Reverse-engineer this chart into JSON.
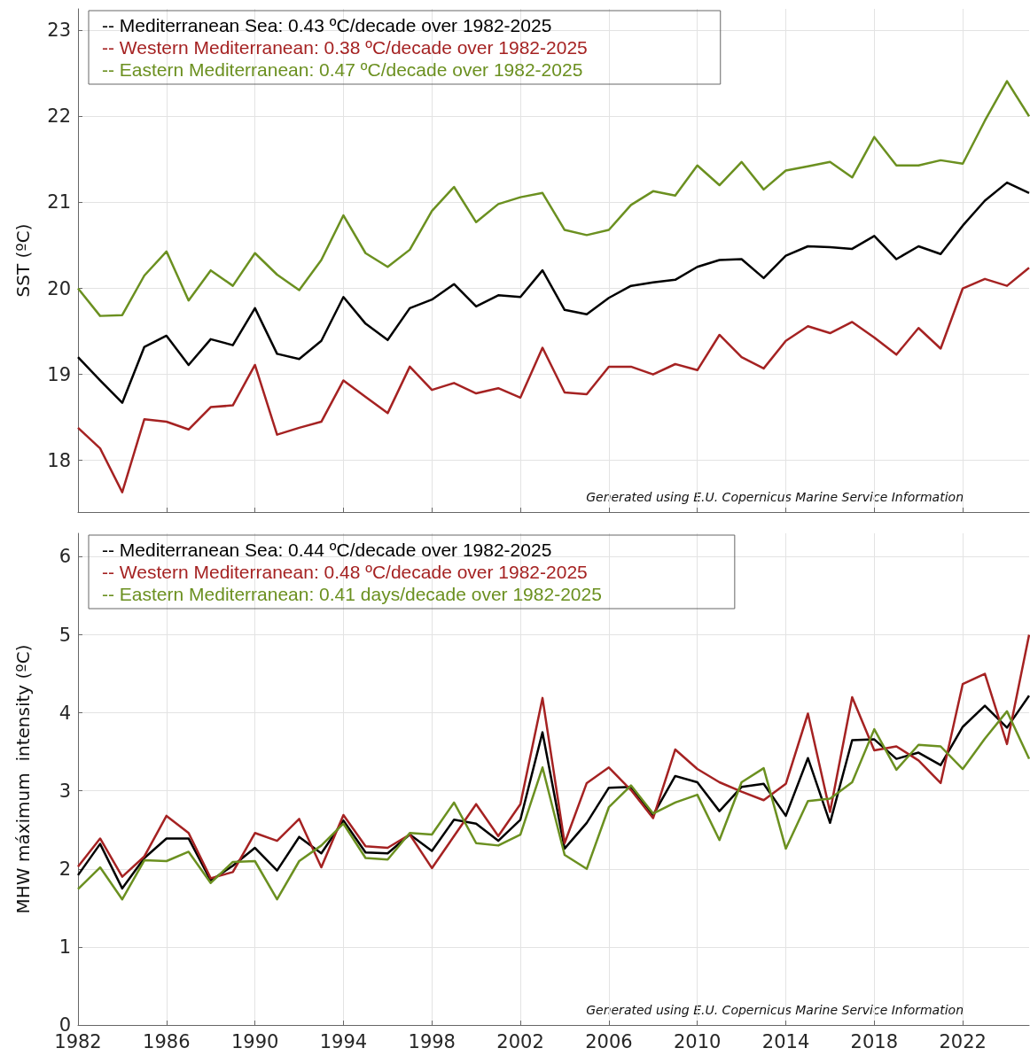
{
  "chart_data": [
    {
      "type": "line",
      "ylabel": "SST (ºC)",
      "x": [
        1982,
        1983,
        1984,
        1985,
        1986,
        1987,
        1988,
        1989,
        1990,
        1991,
        1992,
        1993,
        1994,
        1995,
        1996,
        1997,
        1998,
        1999,
        2000,
        2001,
        2002,
        2003,
        2004,
        2005,
        2006,
        2007,
        2008,
        2009,
        2010,
        2011,
        2012,
        2013,
        2014,
        2015,
        2016,
        2017,
        2018,
        2019,
        2020,
        2021,
        2022,
        2023,
        2024,
        2025
      ],
      "series": [
        {
          "name": "-- Mediterranean Sea: 0.43 ºC/decade over 1982-2025",
          "color": "#000000",
          "values": [
            19.2,
            18.93,
            18.67,
            19.32,
            19.45,
            19.11,
            19.41,
            19.34,
            19.77,
            19.24,
            19.18,
            19.39,
            19.9,
            19.59,
            19.4,
            19.77,
            19.87,
            20.05,
            19.79,
            19.92,
            19.9,
            20.21,
            19.75,
            19.7,
            19.89,
            20.03,
            20.07,
            20.1,
            20.25,
            20.33,
            20.34,
            20.12,
            20.38,
            20.49,
            20.48,
            20.46,
            20.61,
            20.34,
            20.49,
            20.4,
            20.73,
            21.02,
            21.23,
            21.11
          ]
        },
        {
          "name": "-- Western Mediterranean: 0.38 ºC/decade over 1982-2025",
          "color": "#a52222",
          "values": [
            18.38,
            18.14,
            17.63,
            18.48,
            18.45,
            18.36,
            18.62,
            18.64,
            19.11,
            18.3,
            18.38,
            18.45,
            18.93,
            18.74,
            18.55,
            19.09,
            18.82,
            18.9,
            18.78,
            18.84,
            18.73,
            19.31,
            18.79,
            18.77,
            19.09,
            19.09,
            19.0,
            19.12,
            19.05,
            19.46,
            19.2,
            19.07,
            19.39,
            19.56,
            19.48,
            19.61,
            19.43,
            19.23,
            19.54,
            19.3,
            20.0,
            20.11,
            20.03,
            20.24
          ]
        },
        {
          "name": "-- Eastern Mediterranean: 0.47 ºC/decade over 1982-2025",
          "color": "#6b9020",
          "values": [
            20.0,
            19.68,
            19.69,
            20.15,
            20.43,
            19.86,
            20.21,
            20.03,
            20.41,
            20.16,
            19.98,
            20.33,
            20.85,
            20.41,
            20.25,
            20.45,
            20.9,
            21.18,
            20.77,
            20.98,
            21.06,
            21.11,
            20.68,
            20.62,
            20.68,
            20.97,
            21.13,
            21.08,
            21.43,
            21.2,
            21.47,
            21.15,
            21.37,
            21.42,
            21.47,
            21.29,
            21.76,
            21.43,
            21.43,
            21.49,
            21.45,
            21.95,
            22.41,
            22.0
          ]
        }
      ],
      "xlim": [
        1982,
        2025
      ],
      "xticks": [
        1982,
        1986,
        1990,
        1994,
        1998,
        2002,
        2006,
        2010,
        2014,
        2018,
        2022
      ],
      "ylim": [
        17.4,
        23.25
      ],
      "yticks": [
        18,
        19,
        20,
        21,
        22,
        23
      ],
      "tick_labels": "y",
      "grid": true,
      "legend": "top left",
      "marker": "none",
      "line_style": "solid",
      "annotations": [
        "Generated using E.U. Copernicus Marine Service Information"
      ]
    },
    {
      "type": "line",
      "ylabel": "MHW máximum  intensity (ºC)",
      "x": [
        1982,
        1983,
        1984,
        1985,
        1986,
        1987,
        1988,
        1989,
        1990,
        1991,
        1992,
        1993,
        1994,
        1995,
        1996,
        1997,
        1998,
        1999,
        2000,
        2001,
        2002,
        2003,
        2004,
        2005,
        2006,
        2007,
        2008,
        2009,
        2010,
        2011,
        2012,
        2013,
        2014,
        2015,
        2016,
        2017,
        2018,
        2019,
        2020,
        2021,
        2022,
        2023,
        2024,
        2025
      ],
      "series": [
        {
          "name": "-- Mediterranean Sea: 0.44 ºC/decade over 1982-2025",
          "color": "#000000",
          "values": [
            1.92,
            2.32,
            1.75,
            2.14,
            2.39,
            2.39,
            1.85,
            2.04,
            2.27,
            1.98,
            2.41,
            2.2,
            2.62,
            2.21,
            2.2,
            2.44,
            2.23,
            2.63,
            2.58,
            2.36,
            2.63,
            3.75,
            2.26,
            2.59,
            3.04,
            3.05,
            2.69,
            3.19,
            3.11,
            2.74,
            3.05,
            3.09,
            2.68,
            3.42,
            2.59,
            3.65,
            3.66,
            3.41,
            3.49,
            3.33,
            3.82,
            4.09,
            3.81,
            4.22
          ]
        },
        {
          "name": "-- Western Mediterranean: 0.48 ºC/decade over 1982-2025",
          "color": "#a52222",
          "values": [
            2.03,
            2.39,
            1.9,
            2.16,
            2.68,
            2.46,
            1.88,
            1.96,
            2.46,
            2.36,
            2.64,
            2.02,
            2.69,
            2.29,
            2.27,
            2.44,
            2.01,
            2.42,
            2.83,
            2.42,
            2.83,
            4.19,
            2.33,
            3.1,
            3.3,
            3.01,
            2.65,
            3.53,
            3.28,
            3.11,
            2.99,
            2.88,
            3.09,
            3.99,
            2.73,
            4.2,
            3.52,
            3.57,
            3.39,
            3.1,
            4.37,
            4.5,
            3.6,
            5.0
          ]
        },
        {
          "name": "-- Eastern Mediterranean: 0.41 days/decade over 1982-2025",
          "color": "#6b9020",
          "values": [
            1.74,
            2.02,
            1.61,
            2.11,
            2.1,
            2.22,
            1.82,
            2.09,
            2.1,
            1.61,
            2.1,
            2.3,
            2.58,
            2.14,
            2.12,
            2.46,
            2.44,
            2.85,
            2.33,
            2.3,
            2.44,
            3.3,
            2.18,
            2.0,
            2.79,
            3.07,
            2.71,
            2.85,
            2.95,
            2.37,
            3.11,
            3.29,
            2.26,
            2.87,
            2.9,
            3.11,
            3.79,
            3.27,
            3.59,
            3.57,
            3.28,
            3.67,
            4.02,
            3.41
          ]
        }
      ],
      "xlim": [
        1982,
        2025
      ],
      "xticks": [
        1982,
        1986,
        1990,
        1994,
        1998,
        2002,
        2006,
        2010,
        2014,
        2018,
        2022
      ],
      "ylim": [
        0,
        6.3
      ],
      "yticks": [
        0,
        1,
        2,
        3,
        4,
        5,
        6
      ],
      "grid": true,
      "legend": "top left",
      "marker": "none",
      "line_style": "solid",
      "annotations": [
        "Generated using E.U. Copernicus Marine Service Information"
      ]
    }
  ]
}
